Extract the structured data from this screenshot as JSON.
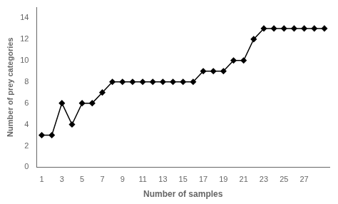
{
  "chart_data": {
    "type": "line",
    "x": [
      1,
      2,
      3,
      4,
      5,
      6,
      7,
      8,
      9,
      10,
      11,
      12,
      13,
      14,
      15,
      16,
      17,
      18,
      19,
      20,
      21,
      22,
      23,
      24,
      25,
      26,
      27,
      28,
      29
    ],
    "values": [
      3,
      3,
      6,
      4,
      6,
      6,
      7,
      8,
      8,
      8,
      8,
      8,
      8,
      8,
      8,
      8,
      9,
      9,
      9,
      10,
      10,
      12,
      13,
      13,
      13,
      13,
      13,
      13,
      13
    ],
    "xlabel": "Number of samples",
    "ylabel": "Number of prey categories",
    "xlim": [
      0.5,
      29.5
    ],
    "ylim": [
      0,
      15
    ],
    "xticks": [
      1,
      3,
      5,
      7,
      9,
      11,
      13,
      15,
      17,
      19,
      21,
      23,
      25,
      27
    ],
    "yticks": [
      0,
      2,
      4,
      6,
      8,
      10,
      12,
      14
    ],
    "color": "#000000",
    "marker": "diamond",
    "line_style": "solid",
    "grid": false
  }
}
